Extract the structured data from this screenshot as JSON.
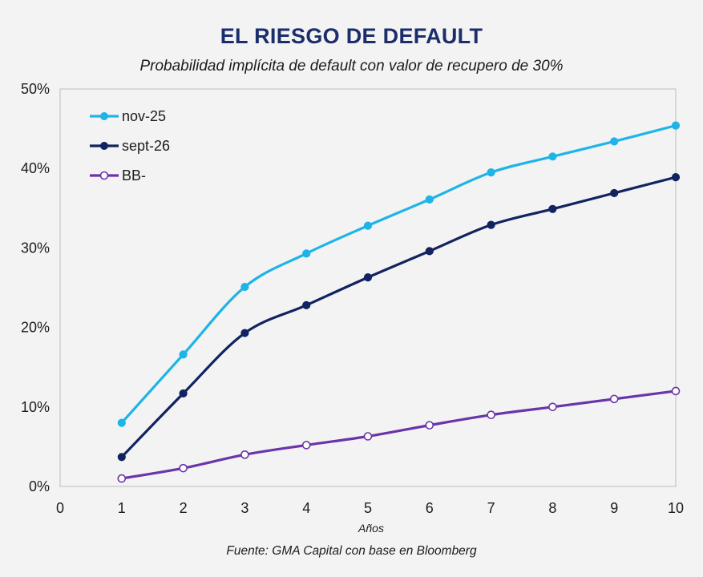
{
  "title": "EL RIESGO DE DEFAULT",
  "subtitle": "Probabilidad implícita de default con valor de recupero de 30%",
  "source": "Fuente: GMA Capital con base en Bloomberg",
  "chart_data": {
    "type": "line",
    "xlabel": "Años",
    "ylabel": "",
    "xlim": [
      0,
      10
    ],
    "ylim": [
      0,
      50
    ],
    "x_ticks": [
      "0",
      "1",
      "2",
      "3",
      "4",
      "5",
      "6",
      "7",
      "8",
      "9",
      "10"
    ],
    "y_ticks": [
      "0%",
      "10%",
      "20%",
      "30%",
      "40%",
      "50%"
    ],
    "legend_position": "top-left",
    "grid": false,
    "x": [
      1,
      2,
      3,
      4,
      5,
      6,
      7,
      8,
      9,
      10
    ],
    "series": [
      {
        "name": "nov-25",
        "color": "#1eb4e8",
        "marker": "filled",
        "values": [
          8.0,
          16.6,
          25.1,
          29.3,
          32.8,
          36.1,
          39.5,
          41.5,
          43.4,
          45.4
        ]
      },
      {
        "name": "sept-26",
        "color": "#112360",
        "marker": "filled",
        "values": [
          3.7,
          11.7,
          19.3,
          22.8,
          26.3,
          29.6,
          32.9,
          34.9,
          36.9,
          38.9
        ]
      },
      {
        "name": "BB-",
        "color": "#6a35a8",
        "marker": "hollow",
        "values": [
          1.0,
          2.3,
          4.0,
          5.2,
          6.3,
          7.7,
          9.0,
          10.0,
          11.0,
          12.0
        ]
      }
    ]
  }
}
